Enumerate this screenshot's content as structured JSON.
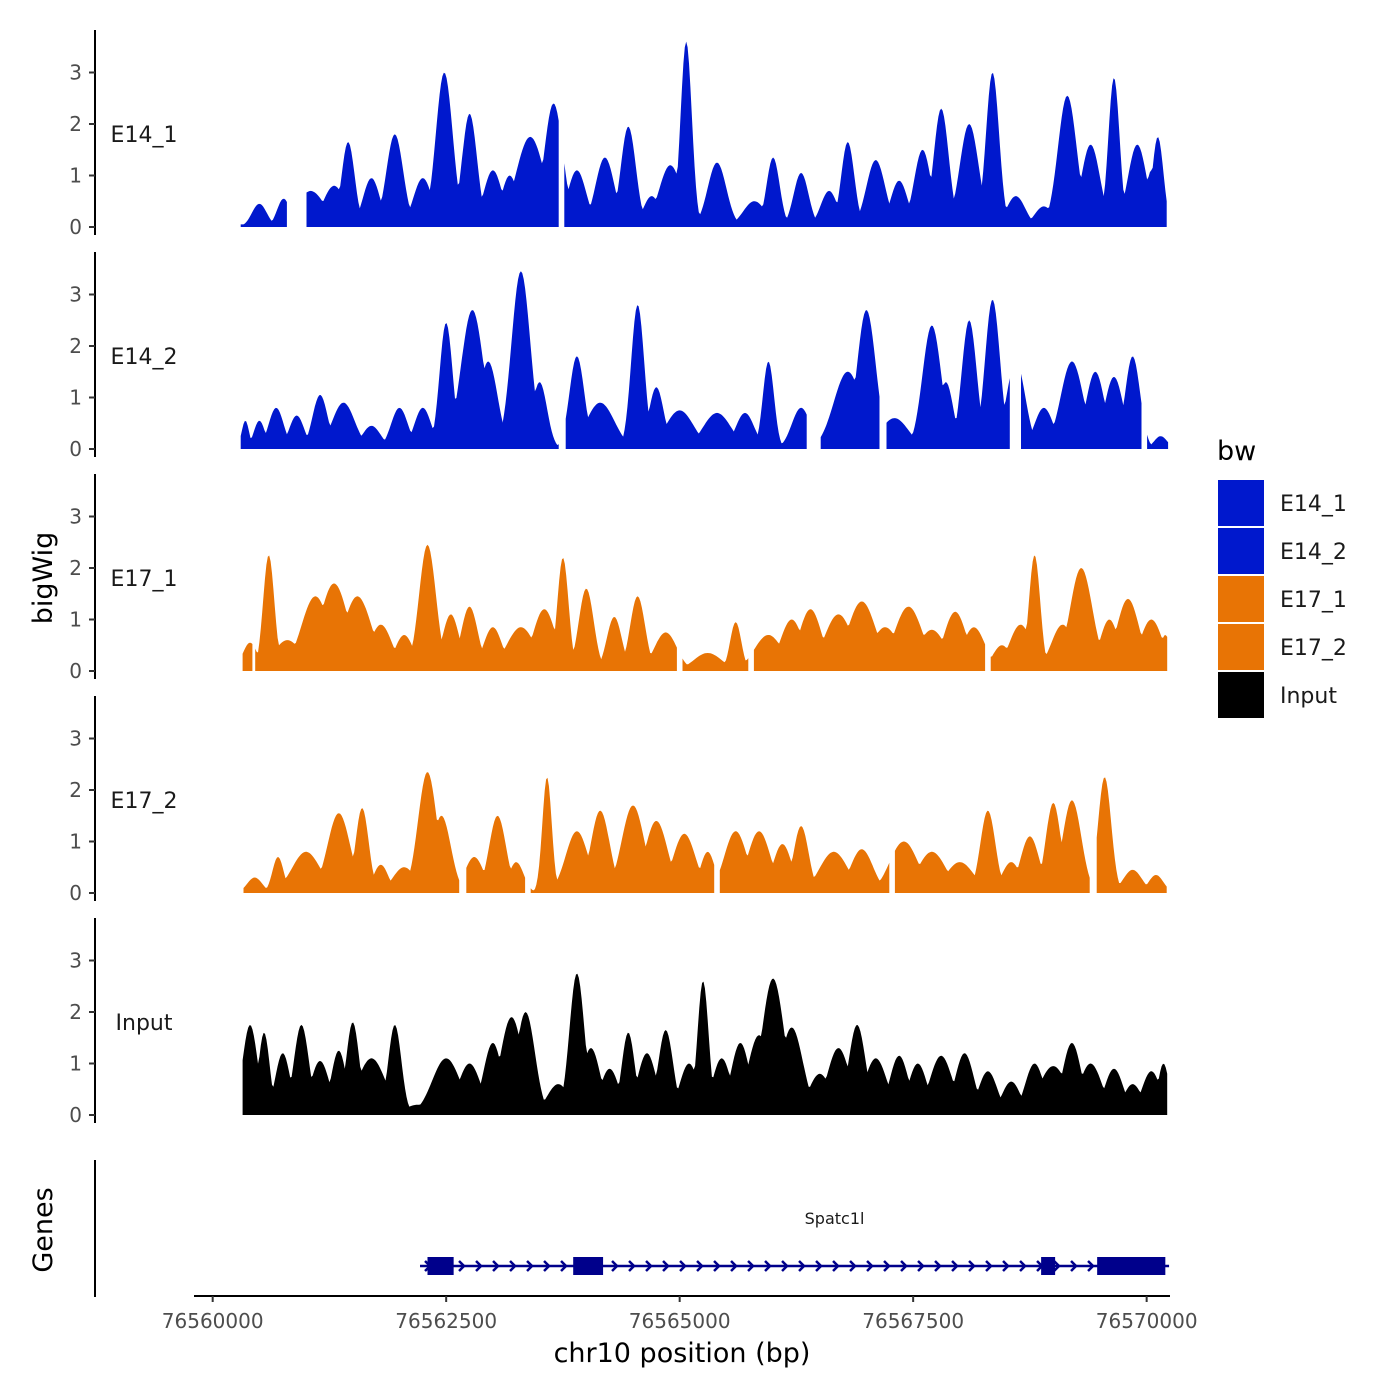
{
  "chart_data": {
    "type": "area",
    "title": "",
    "xlabel": "chr10 position (bp)",
    "ylabel": "bigWig",
    "genes_label": "Genes",
    "xlim": [
      76559800,
      76570250
    ],
    "ylim": [
      0,
      3.8
    ],
    "x_ticks": [
      76560000,
      76562500,
      76565000,
      76567500,
      76570000
    ],
    "x_tick_labels": [
      "76560000",
      "76562500",
      "76565000",
      "76567500",
      "76570000"
    ],
    "y_ticks": [
      0,
      1,
      2,
      3
    ],
    "y_tick_labels": [
      "0",
      "1",
      "2",
      "3"
    ],
    "legend": {
      "title": "bw",
      "entries": [
        {
          "label": "E14_1",
          "color": "#0018CD"
        },
        {
          "label": "E14_2",
          "color": "#0018CD"
        },
        {
          "label": "E17_1",
          "color": "#E87405"
        },
        {
          "label": "E17_2",
          "color": "#E87405"
        },
        {
          "label": "Input",
          "color": "#000000"
        }
      ]
    },
    "series": [
      {
        "name": "E14_1",
        "color": "#0018CD",
        "x_start": 76560300,
        "x_end": 76570220,
        "gaps": [
          [
            76560800,
            76561000
          ],
          [
            76563710,
            76563760
          ]
        ],
        "peaks": [
          [
            76560500,
            0.45,
            80
          ],
          [
            76560760,
            0.55,
            70
          ],
          [
            76561050,
            0.7,
            150
          ],
          [
            76561300,
            0.8,
            120
          ],
          [
            76561450,
            1.65,
            70
          ],
          [
            76561700,
            0.95,
            90
          ],
          [
            76561950,
            1.8,
            90
          ],
          [
            76562250,
            0.95,
            100
          ],
          [
            76562480,
            3.0,
            90
          ],
          [
            76562750,
            2.2,
            80
          ],
          [
            76563000,
            1.1,
            100
          ],
          [
            76563180,
            1.0,
            90
          ],
          [
            76563400,
            1.75,
            150
          ],
          [
            76563650,
            2.4,
            100
          ],
          [
            76563900,
            1.1,
            100
          ],
          [
            76564200,
            1.35,
            100
          ],
          [
            76564450,
            1.95,
            80
          ],
          [
            76564700,
            0.6,
            90
          ],
          [
            76564900,
            1.2,
            120
          ],
          [
            76565070,
            3.6,
            60
          ],
          [
            76565400,
            1.25,
            100
          ],
          [
            76565800,
            0.5,
            120
          ],
          [
            76566000,
            1.35,
            70
          ],
          [
            76566300,
            1.05,
            80
          ],
          [
            76566600,
            0.7,
            90
          ],
          [
            76566800,
            1.65,
            70
          ],
          [
            76567100,
            1.3,
            100
          ],
          [
            76567350,
            0.9,
            90
          ],
          [
            76567600,
            1.5,
            90
          ],
          [
            76567800,
            2.3,
            80
          ],
          [
            76568100,
            2.0,
            100
          ],
          [
            76568350,
            3.0,
            70
          ],
          [
            76568600,
            0.6,
            100
          ],
          [
            76568900,
            0.4,
            100
          ],
          [
            76569150,
            2.55,
            100
          ],
          [
            76569400,
            1.6,
            100
          ],
          [
            76569650,
            2.9,
            60
          ],
          [
            76569900,
            1.6,
            100
          ],
          [
            76570050,
            1.1,
            60
          ],
          [
            76570120,
            1.75,
            60
          ]
        ]
      },
      {
        "name": "E14_2",
        "color": "#0018CD",
        "x_start": 76560300,
        "x_end": 76570230,
        "gaps": [
          [
            76563720,
            76563770
          ],
          [
            76566370,
            76566500
          ],
          [
            76567150,
            76567200
          ],
          [
            76568550,
            76568640
          ],
          [
            76569950,
            76570000
          ]
        ],
        "peaks": [
          [
            76560350,
            0.55,
            40
          ],
          [
            76560500,
            0.55,
            60
          ],
          [
            76560680,
            0.8,
            80
          ],
          [
            76560900,
            0.65,
            80
          ],
          [
            76561150,
            1.05,
            80
          ],
          [
            76561400,
            0.9,
            120
          ],
          [
            76561700,
            0.45,
            100
          ],
          [
            76562000,
            0.8,
            90
          ],
          [
            76562250,
            0.8,
            90
          ],
          [
            76562500,
            2.45,
            70
          ],
          [
            76562780,
            2.7,
            120
          ],
          [
            76562950,
            1.7,
            100
          ],
          [
            76563300,
            3.45,
            100
          ],
          [
            76563500,
            1.3,
            80
          ],
          [
            76563900,
            1.8,
            80
          ],
          [
            76564150,
            0.9,
            150
          ],
          [
            76564550,
            2.8,
            70
          ],
          [
            76564750,
            1.2,
            80
          ],
          [
            76565000,
            0.75,
            150
          ],
          [
            76565400,
            0.7,
            150
          ],
          [
            76565700,
            0.7,
            100
          ],
          [
            76565950,
            1.7,
            60
          ],
          [
            76566300,
            0.8,
            100
          ],
          [
            76566800,
            1.5,
            150
          ],
          [
            76567000,
            2.7,
            100
          ],
          [
            76567300,
            0.6,
            150
          ],
          [
            76567700,
            2.4,
            100
          ],
          [
            76567850,
            1.3,
            80
          ],
          [
            76568100,
            2.5,
            80
          ],
          [
            76568350,
            2.9,
            80
          ],
          [
            76568600,
            1.7,
            100
          ],
          [
            76568900,
            0.8,
            100
          ],
          [
            76569200,
            1.7,
            120
          ],
          [
            76569450,
            1.5,
            100
          ],
          [
            76569650,
            1.4,
            100
          ],
          [
            76569850,
            1.8,
            80
          ],
          [
            76570150,
            0.25,
            70
          ]
        ]
      },
      {
        "name": "E17_1",
        "color": "#E87405",
        "x_start": 76560320,
        "x_end": 76570220,
        "gaps": [
          [
            76560430,
            76560440
          ],
          [
            76564980,
            76565020
          ],
          [
            76565750,
            76565790
          ],
          [
            76568280,
            76568320
          ]
        ],
        "peaks": [
          [
            76560400,
            0.55,
            80
          ],
          [
            76560600,
            2.25,
            60
          ],
          [
            76560800,
            0.6,
            150
          ],
          [
            76561100,
            1.45,
            150
          ],
          [
            76561300,
            1.7,
            150
          ],
          [
            76561550,
            1.45,
            150
          ],
          [
            76561800,
            0.9,
            120
          ],
          [
            76562050,
            0.7,
            100
          ],
          [
            76562300,
            2.45,
            90
          ],
          [
            76562550,
            1.1,
            90
          ],
          [
            76562750,
            1.25,
            90
          ],
          [
            76563000,
            0.85,
            100
          ],
          [
            76563300,
            0.85,
            150
          ],
          [
            76563550,
            1.2,
            120
          ],
          [
            76563750,
            2.2,
            60
          ],
          [
            76564000,
            1.6,
            80
          ],
          [
            76564300,
            1.05,
            80
          ],
          [
            76564550,
            1.45,
            80
          ],
          [
            76564850,
            0.75,
            120
          ],
          [
            76565300,
            0.35,
            150
          ],
          [
            76565600,
            0.95,
            60
          ],
          [
            76565950,
            0.7,
            150
          ],
          [
            76566200,
            1.0,
            120
          ],
          [
            76566400,
            1.2,
            120
          ],
          [
            76566700,
            1.1,
            150
          ],
          [
            76566950,
            1.35,
            150
          ],
          [
            76567200,
            0.85,
            150
          ],
          [
            76567450,
            1.25,
            150
          ],
          [
            76567700,
            0.8,
            150
          ],
          [
            76567950,
            1.15,
            120
          ],
          [
            76568150,
            0.85,
            120
          ],
          [
            76568450,
            0.5,
            100
          ],
          [
            76568650,
            0.9,
            120
          ],
          [
            76568800,
            2.25,
            60
          ],
          [
            76569100,
            0.9,
            120
          ],
          [
            76569300,
            2.0,
            120
          ],
          [
            76569600,
            1.0,
            100
          ],
          [
            76569800,
            1.4,
            120
          ],
          [
            76570050,
            1.0,
            120
          ],
          [
            76570200,
            0.7,
            60
          ]
        ]
      },
      {
        "name": "E17_2",
        "color": "#E87405",
        "x_start": 76560330,
        "x_end": 76570220,
        "gaps": [
          [
            76562650,
            76562700
          ],
          [
            76563350,
            76563400
          ],
          [
            76565380,
            76565420
          ],
          [
            76567250,
            76567300
          ],
          [
            76569400,
            76569450
          ]
        ],
        "peaks": [
          [
            76560450,
            0.3,
            80
          ],
          [
            76560700,
            0.7,
            60
          ],
          [
            76561000,
            0.8,
            150
          ],
          [
            76561350,
            1.55,
            120
          ],
          [
            76561600,
            1.65,
            70
          ],
          [
            76561800,
            0.55,
            80
          ],
          [
            76562050,
            0.5,
            120
          ],
          [
            76562300,
            2.35,
            100
          ],
          [
            76562450,
            1.5,
            100
          ],
          [
            76562800,
            0.7,
            100
          ],
          [
            76563050,
            1.5,
            90
          ],
          [
            76563250,
            0.6,
            80
          ],
          [
            76563580,
            2.25,
            50
          ],
          [
            76563900,
            1.2,
            120
          ],
          [
            76564150,
            1.6,
            100
          ],
          [
            76564500,
            1.7,
            120
          ],
          [
            76564750,
            1.4,
            120
          ],
          [
            76565050,
            1.15,
            120
          ],
          [
            76565300,
            0.8,
            80
          ],
          [
            76565600,
            1.2,
            120
          ],
          [
            76565850,
            1.2,
            120
          ],
          [
            76566100,
            0.95,
            100
          ],
          [
            76566300,
            1.3,
            80
          ],
          [
            76566650,
            0.8,
            150
          ],
          [
            76566950,
            0.85,
            120
          ],
          [
            76567400,
            1.0,
            150
          ],
          [
            76567700,
            0.8,
            150
          ],
          [
            76568000,
            0.6,
            150
          ],
          [
            76568300,
            1.6,
            80
          ],
          [
            76568550,
            0.6,
            100
          ],
          [
            76568750,
            1.1,
            100
          ],
          [
            76569000,
            1.75,
            80
          ],
          [
            76569200,
            1.8,
            100
          ],
          [
            76569550,
            2.25,
            70
          ],
          [
            76569850,
            0.45,
            100
          ],
          [
            76570100,
            0.35,
            80
          ]
        ]
      },
      {
        "name": "Input",
        "color": "#000000",
        "x_start": 76560320,
        "x_end": 76570230,
        "gaps": [],
        "peaks": [
          [
            76560400,
            1.75,
            80
          ],
          [
            76560550,
            1.6,
            60
          ],
          [
            76560750,
            1.2,
            80
          ],
          [
            76560950,
            1.75,
            80
          ],
          [
            76561150,
            1.05,
            100
          ],
          [
            76561350,
            1.25,
            80
          ],
          [
            76561500,
            1.8,
            70
          ],
          [
            76561700,
            1.1,
            150
          ],
          [
            76561950,
            1.75,
            70
          ],
          [
            76562200,
            0.2,
            150
          ],
          [
            76562500,
            1.1,
            150
          ],
          [
            76562750,
            1.0,
            120
          ],
          [
            76563000,
            1.4,
            100
          ],
          [
            76563200,
            1.9,
            120
          ],
          [
            76563350,
            2.0,
            100
          ],
          [
            76563700,
            0.6,
            120
          ],
          [
            76563900,
            2.75,
            80
          ],
          [
            76564050,
            1.3,
            100
          ],
          [
            76564250,
            0.9,
            100
          ],
          [
            76564450,
            1.6,
            70
          ],
          [
            76564650,
            1.2,
            100
          ],
          [
            76564850,
            1.65,
            80
          ],
          [
            76565100,
            1.0,
            100
          ],
          [
            76565250,
            2.6,
            60
          ],
          [
            76565450,
            1.1,
            100
          ],
          [
            76565650,
            1.4,
            100
          ],
          [
            76565850,
            1.55,
            120
          ],
          [
            76566000,
            2.65,
            120
          ],
          [
            76566200,
            1.7,
            120
          ],
          [
            76566500,
            0.8,
            120
          ],
          [
            76566700,
            1.3,
            120
          ],
          [
            76566900,
            1.75,
            90
          ],
          [
            76567100,
            1.1,
            120
          ],
          [
            76567350,
            1.15,
            100
          ],
          [
            76567550,
            1.0,
            100
          ],
          [
            76567800,
            1.15,
            120
          ],
          [
            76568050,
            1.2,
            100
          ],
          [
            76568300,
            0.85,
            100
          ],
          [
            76568550,
            0.65,
            100
          ],
          [
            76568800,
            1.0,
            100
          ],
          [
            76569000,
            0.95,
            150
          ],
          [
            76569200,
            1.4,
            100
          ],
          [
            76569400,
            1.0,
            120
          ],
          [
            76569650,
            0.9,
            100
          ],
          [
            76569850,
            0.6,
            100
          ],
          [
            76570050,
            0.85,
            100
          ],
          [
            76570180,
            1.0,
            60
          ]
        ]
      }
    ],
    "genes": [
      {
        "name": "Spatc1l",
        "start": 76562220,
        "end": 76570240,
        "strand": "+",
        "color": "#00008B",
        "exons": [
          [
            76562300,
            76562580
          ],
          [
            76563860,
            76564180
          ],
          [
            76568870,
            76569020
          ],
          [
            76569470,
            76570200
          ]
        ]
      }
    ]
  }
}
